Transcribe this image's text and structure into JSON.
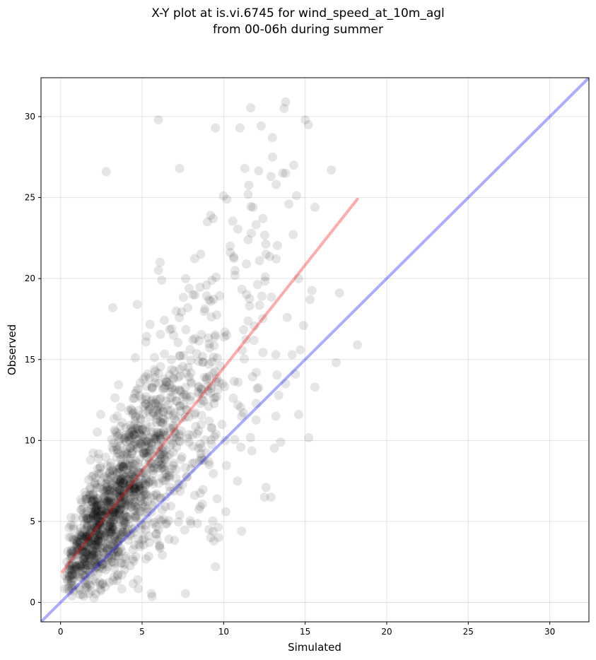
{
  "chart_data": {
    "type": "scatter",
    "title": "X-Y plot at is.vi.6745 for wind_speed_at_10m_agl",
    "subtitle": "from 00-06h during summer",
    "xlabel": "Simulated",
    "ylabel": "Observed",
    "xlim": [
      -1.2,
      32.4
    ],
    "ylim": [
      -1.2,
      32.4
    ],
    "xticks": [
      0,
      5,
      10,
      15,
      20,
      25,
      30
    ],
    "yticks": [
      0,
      5,
      10,
      15,
      20,
      25,
      30
    ],
    "xtick_labels": [
      "0",
      "5",
      "10",
      "15",
      "20",
      "25",
      "30"
    ],
    "ytick_labels": [
      "0",
      "5",
      "10",
      "15",
      "20",
      "25",
      "30"
    ],
    "grid": true,
    "point_color": "#000000",
    "point_opacity": 0.1,
    "outlier_points": {
      "x": [
        6.0,
        13.8,
        13.7,
        9.5,
        11.0,
        2.8,
        15.0,
        15.2,
        13.0,
        7.3,
        11.3,
        13.8,
        16.6,
        12.9,
        10.0,
        10.2,
        11.5,
        11.8,
        14.0,
        12.4,
        9.0,
        9.2,
        11.7,
        10.4,
        11.5,
        8.6,
        6.1,
        6.0,
        6.2,
        15.6,
        17.1,
        18.2,
        16.9,
        15.6,
        14.4,
        14.7,
        11.1,
        12.6,
        12.5,
        12.9,
        10.1,
        11.1,
        9.5,
        9.7,
        13.2,
        14.9,
        3.2,
        4.7,
        7.8,
        9.1,
        9.2,
        9.4,
        9.6,
        12.0,
        13.5,
        13.2,
        13.8,
        14.2,
        14.6,
        13.9,
        15.3,
        12.2,
        12.6,
        14.6,
        11.4,
        10.7
      ],
      "y": [
        29.8,
        30.9,
        30.5,
        29.3,
        29.3,
        26.6,
        29.8,
        29.5,
        27.5,
        26.8,
        26.8,
        26.5,
        26.7,
        26.3,
        25.1,
        24.9,
        25.2,
        24.4,
        24.6,
        23.7,
        23.5,
        23.9,
        22.8,
        22.0,
        22.4,
        21.5,
        21.0,
        20.5,
        19.9,
        24.4,
        19.1,
        15.9,
        14.8,
        13.3,
        14.1,
        15.6,
        4.4,
        7.1,
        6.5,
        6.5,
        10.0,
        11.5,
        2.2,
        4.0,
        11.5,
        17.1,
        18.2,
        18.4,
        18.2,
        4.5,
        4.0,
        3.8,
        6.4,
        14.2,
        9.9,
        15.3,
        13.5,
        15.3,
        11.6,
        17.6,
        18.7,
        21.1,
        21.5,
        20.0,
        20.9,
        20.5
      ]
    },
    "bulk_cloud": {
      "count": 1500,
      "x_mean": 4.5,
      "y_over_x_slope": 1.25,
      "y_intercept": 1.9
    },
    "series": [
      {
        "kind": "regression",
        "color": "#ff0000",
        "opacity": 0.33,
        "x": [
          0.1,
          18.2
        ],
        "y": [
          1.9,
          24.9
        ]
      },
      {
        "kind": "one-to-one",
        "color": "#0000ff",
        "opacity": 0.33,
        "x": [
          -1.2,
          32.4
        ],
        "y": [
          -1.2,
          32.4
        ]
      }
    ]
  }
}
